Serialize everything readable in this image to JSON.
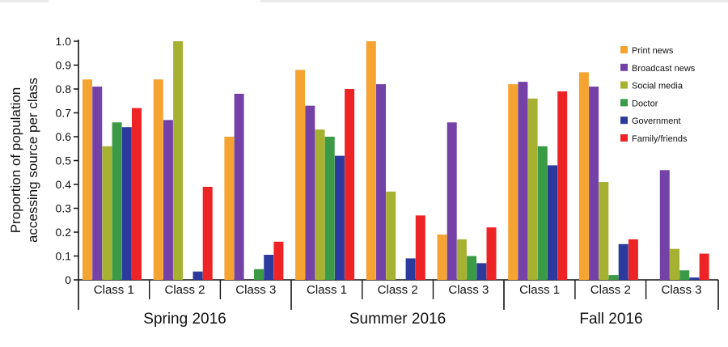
{
  "chart_data": {
    "type": "bar",
    "ylabel_lines": [
      "Proportion of population",
      "accessing source per class"
    ],
    "ylim": [
      0,
      1.0
    ],
    "yticks": [
      "0",
      "0.1",
      "0.2",
      "0.3",
      "0.4",
      "0.5",
      "0.6",
      "0.7",
      "0.8",
      "0.9",
      "1.0"
    ],
    "legend_position": "top-right",
    "groups": [
      {
        "name": "Spring 2016",
        "classes": [
          "Class 1",
          "Class 2",
          "Class 3"
        ]
      },
      {
        "name": "Summer 2016",
        "classes": [
          "Class 1",
          "Class 2",
          "Class 3"
        ]
      },
      {
        "name": "Fall 2016",
        "classes": [
          "Class 1",
          "Class 2",
          "Class 3"
        ]
      }
    ],
    "series": [
      {
        "name": "Print news",
        "color": "#f5a331",
        "values": [
          0.84,
          0.84,
          0.6,
          0.88,
          1.0,
          0.19,
          0.82,
          0.87,
          0.0
        ]
      },
      {
        "name": "Broadcast news",
        "color": "#7442a7",
        "values": [
          0.81,
          0.67,
          0.78,
          0.73,
          0.82,
          0.66,
          0.83,
          0.81,
          0.46
        ]
      },
      {
        "name": "Social media",
        "color": "#a7b131",
        "values": [
          0.56,
          1.0,
          0.0,
          0.63,
          0.37,
          0.17,
          0.76,
          0.41,
          0.13
        ]
      },
      {
        "name": "Doctor",
        "color": "#3a9a45",
        "values": [
          0.66,
          0.0,
          0.045,
          0.6,
          0.0,
          0.1,
          0.56,
          0.02,
          0.04
        ]
      },
      {
        "name": "Government",
        "color": "#2b3a9c",
        "values": [
          0.64,
          0.035,
          0.105,
          0.52,
          0.09,
          0.07,
          0.48,
          0.15,
          0.01
        ]
      },
      {
        "name": "Family/friends",
        "color": "#ee2326",
        "values": [
          0.72,
          0.39,
          0.16,
          0.8,
          0.27,
          0.22,
          0.79,
          0.17,
          0.11
        ]
      }
    ]
  }
}
